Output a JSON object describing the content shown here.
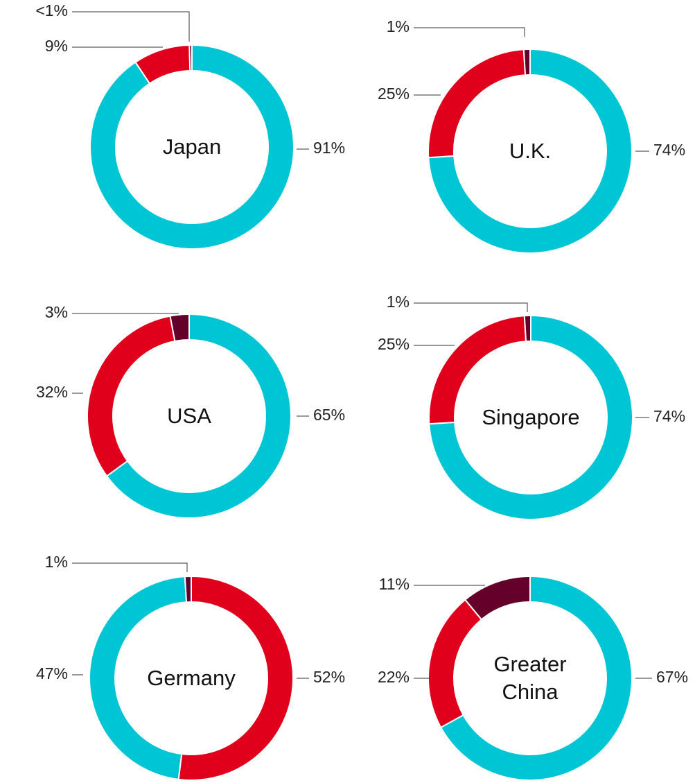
{
  "chart_data": [
    {
      "type": "pie",
      "title": "Japan",
      "values": [
        91,
        9,
        0.4
      ],
      "value_labels": [
        "91%",
        "9%",
        "<1%"
      ],
      "colors": [
        "#00c5d4",
        "#e0001b",
        "#64002a"
      ]
    },
    {
      "type": "pie",
      "title": "U.K.",
      "values": [
        74,
        25,
        1
      ],
      "value_labels": [
        "74%",
        "25%",
        "1%"
      ],
      "colors": [
        "#00c5d4",
        "#e0001b",
        "#64002a"
      ]
    },
    {
      "type": "pie",
      "title": "USA",
      "values": [
        65,
        32,
        3
      ],
      "value_labels": [
        "65%",
        "32%",
        "3%"
      ],
      "colors": [
        "#00c5d4",
        "#e0001b",
        "#64002a"
      ]
    },
    {
      "type": "pie",
      "title": "Singapore",
      "values": [
        74,
        25,
        1
      ],
      "value_labels": [
        "74%",
        "25%",
        "1%"
      ],
      "colors": [
        "#00c5d4",
        "#e0001b",
        "#64002a"
      ]
    },
    {
      "type": "pie",
      "title": "Germany",
      "values": [
        52,
        47,
        1
      ],
      "value_labels": [
        "52%",
        "47%",
        "1%"
      ],
      "colors": [
        "#e0001b",
        "#00c5d4",
        "#64002a"
      ]
    },
    {
      "type": "pie",
      "title": "Greater China",
      "values": [
        67,
        22,
        11
      ],
      "value_labels": [
        "67%",
        "22%",
        "11%"
      ],
      "colors": [
        "#00c5d4",
        "#e0001b",
        "#64002a"
      ]
    }
  ]
}
